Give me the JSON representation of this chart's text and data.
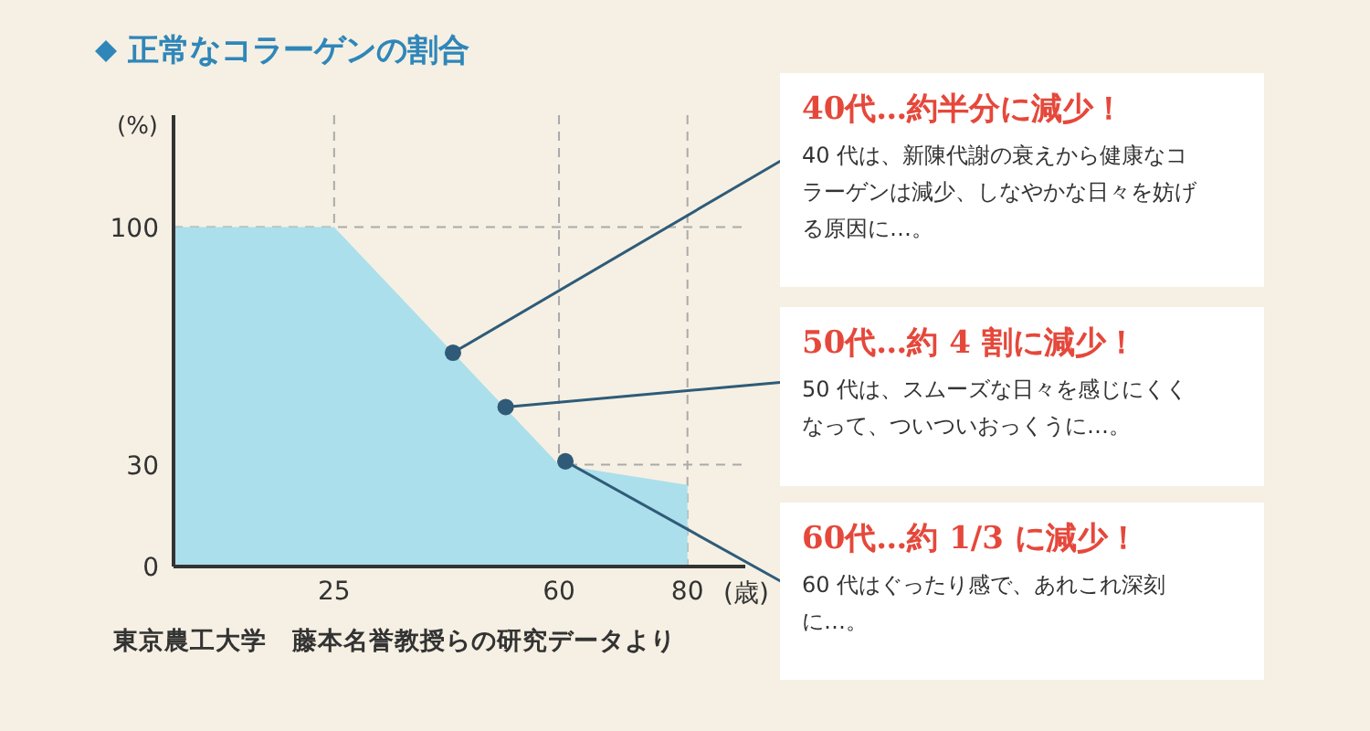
{
  "chart_data": {
    "type": "area",
    "title": "正常なコラーゲンの割合",
    "xlabel": "(歳)",
    "ylabel": "(%)",
    "series": [
      {
        "color": "#abdfeb",
        "x": [
          0,
          25,
          60,
          80
        ],
        "values": [
          100,
          100,
          30,
          24
        ]
      },
      {
        "type": "scatter",
        "marker": "circle",
        "color": "#2f5b78",
        "x": [
          43.5,
          51.7,
          61
        ],
        "values": [
          63,
          47,
          31
        ]
      }
    ],
    "xlim": [
      0,
      89
    ],
    "xticks": [
      25,
      60,
      80
    ],
    "ylim": [
      0,
      133
    ],
    "yticks": [
      0,
      30,
      100
    ],
    "grid": true,
    "annotations": [
      {
        "text": "40代…約半分に減少！",
        "x": 43.5,
        "y": 63
      },
      {
        "text": "40 代は、新陳代謝の衰えから健康なコラーゲンは減少、しなやかな日々を妨げる原因に…。",
        "x": 43.5,
        "y": 63
      },
      {
        "text": "50代…約 4 割に減少！",
        "x": 51.7,
        "y": 47
      },
      {
        "text": "50 代は、スムーズな日々を感じにくくなって、ついついおっくうに…。",
        "x": 51.7,
        "y": 47
      },
      {
        "text": "60代…約 1/3 に減少！",
        "x": 61,
        "y": 31
      },
      {
        "text": "60 代はぐったり感で、あれこれ深刻に…。",
        "x": 61,
        "y": 31
      },
      "東京農工大学　藤本名誉教授らの研究データより"
    ]
  }
}
